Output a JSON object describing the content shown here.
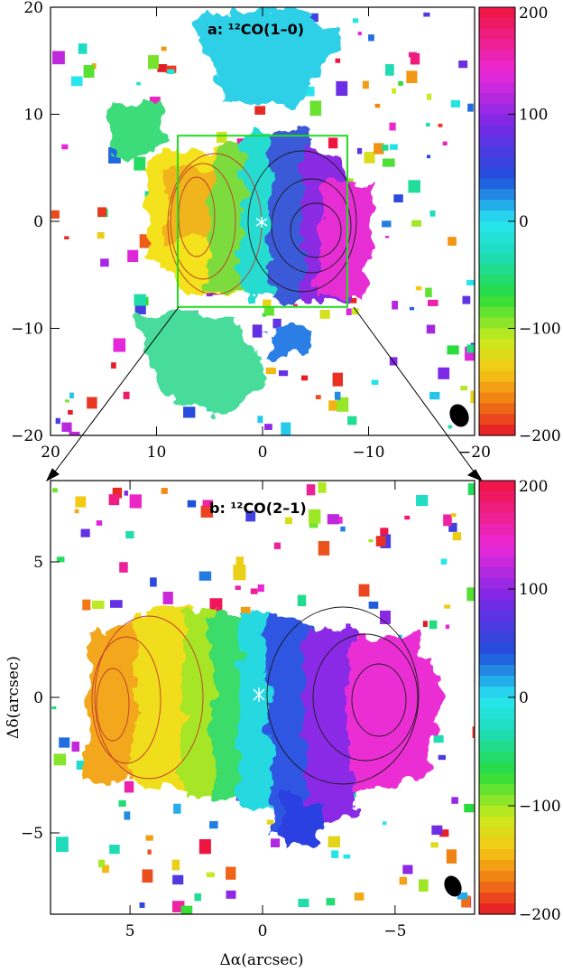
{
  "figure": {
    "xlabel": "Δα(arcsec)",
    "ylabel": "Δδ(arcsec)"
  },
  "colors": {
    "inset_box": "#22dd22",
    "contour_red": "#c0392b",
    "contour_dark": "#1a1a1a",
    "beam": "#000000"
  },
  "chart_data": [
    {
      "type": "heatmap",
      "title": "a: ¹²CO(1–0)",
      "x_ticks": [
        "20",
        "10",
        "0",
        "−10",
        "−20"
      ],
      "y_ticks": [
        "20",
        "10",
        "0",
        "−10",
        "−20"
      ],
      "xlim": [
        20,
        -20
      ],
      "ylim": [
        -20,
        20
      ],
      "colorbar": {
        "ticks": [
          "200",
          "100",
          "0",
          "−100",
          "−200"
        ],
        "range": [
          -200,
          200
        ]
      },
      "inset_box": {
        "x_range": [
          8,
          -8
        ],
        "y_range": [
          -8,
          8
        ]
      },
      "center_marker": [
        0,
        0
      ],
      "beam": true
    },
    {
      "type": "heatmap",
      "title": "b: ¹²CO(2–1)",
      "x_ticks": [
        "5",
        "0",
        "−5"
      ],
      "y_ticks": [
        "5",
        "0",
        "−5"
      ],
      "xlim": [
        8,
        -8
      ],
      "ylim": [
        -8,
        8
      ],
      "colorbar": {
        "ticks": [
          "200",
          "100",
          "0",
          "−100",
          "−200"
        ],
        "range": [
          -200,
          200
        ]
      },
      "center_marker": [
        0,
        0
      ],
      "beam": true
    }
  ]
}
